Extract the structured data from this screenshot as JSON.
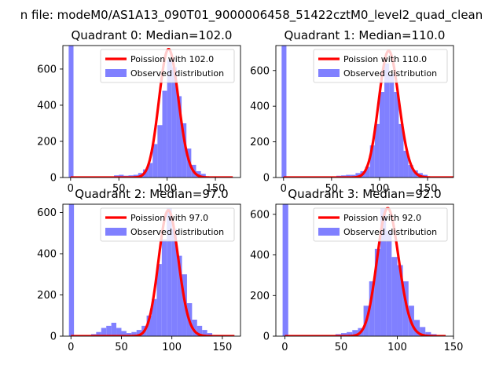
{
  "suptitle": "n file: modeM0/AS1A13_090T01_9000006458_51422cztM0_level2_quad_clean",
  "chart_data": [
    {
      "type": "histogram",
      "title": "Quadrant 0: Median=102.0",
      "median": 102.0,
      "legend": [
        "Poission with 102.0",
        "Observed distribution"
      ],
      "legend_position": "upper-right",
      "xlim": [
        -8,
        176
      ],
      "ylim": [
        0,
        730
      ],
      "xticks": [
        0,
        50,
        100,
        150
      ],
      "yticks": [
        0,
        200,
        400,
        600
      ],
      "hist_bins": [
        [
          -2,
          3,
          730
        ],
        [
          45,
          50,
          12
        ],
        [
          50,
          55,
          15
        ],
        [
          55,
          60,
          10
        ],
        [
          60,
          65,
          12
        ],
        [
          65,
          70,
          15
        ],
        [
          70,
          75,
          25
        ],
        [
          75,
          80,
          45
        ],
        [
          80,
          85,
          80
        ],
        [
          85,
          90,
          185
        ],
        [
          90,
          95,
          290
        ],
        [
          95,
          100,
          480
        ],
        [
          100,
          105,
          650
        ],
        [
          105,
          110,
          610
        ],
        [
          110,
          115,
          450
        ],
        [
          115,
          120,
          300
        ],
        [
          120,
          125,
          160
        ],
        [
          125,
          130,
          70
        ],
        [
          130,
          135,
          35
        ],
        [
          135,
          140,
          20
        ]
      ],
      "poisson_lambda": 102.0,
      "poisson_scale": 710,
      "curve_xrange": [
        0,
        168
      ],
      "poisson_color": "#ff0000",
      "hist_color": "#8080ff"
    },
    {
      "type": "histogram",
      "title": "Quadrant 1: Median=110.0",
      "median": 110.0,
      "legend": [
        "Poission with 110.0",
        "Observed distribution"
      ],
      "legend_position": "upper-right",
      "xlim": [
        -8,
        177
      ],
      "ylim": [
        0,
        740
      ],
      "xticks": [
        0,
        50,
        100,
        150
      ],
      "yticks": [
        0,
        200,
        400,
        600
      ],
      "hist_bins": [
        [
          -2,
          3,
          740
        ],
        [
          55,
          60,
          10
        ],
        [
          60,
          65,
          12
        ],
        [
          65,
          70,
          15
        ],
        [
          70,
          75,
          15
        ],
        [
          75,
          80,
          25
        ],
        [
          80,
          85,
          35
        ],
        [
          85,
          90,
          60
        ],
        [
          90,
          95,
          180
        ],
        [
          95,
          100,
          300
        ],
        [
          100,
          105,
          480
        ],
        [
          105,
          110,
          640
        ],
        [
          110,
          115,
          580
        ],
        [
          115,
          120,
          480
        ],
        [
          120,
          125,
          300
        ],
        [
          125,
          130,
          150
        ],
        [
          130,
          135,
          70
        ],
        [
          135,
          140,
          40
        ],
        [
          140,
          145,
          25
        ],
        [
          145,
          150,
          15
        ]
      ],
      "poisson_lambda": 110.0,
      "poisson_scale": 710,
      "curve_xrange": [
        0,
        178
      ],
      "poisson_color": "#ff0000",
      "hist_color": "#8080ff"
    },
    {
      "type": "histogram",
      "title": "Quadrant 2: Median=97.0",
      "median": 97.0,
      "legend": [
        "Poission with 97.0",
        "Observed distribution"
      ],
      "legend_position": "upper-right",
      "xlim": [
        -8,
        168
      ],
      "ylim": [
        0,
        640
      ],
      "xticks": [
        0,
        50,
        100,
        150
      ],
      "yticks": [
        0,
        200,
        400,
        600
      ],
      "hist_bins": [
        [
          -2,
          3,
          640
        ],
        [
          20,
          25,
          10
        ],
        [
          25,
          30,
          20
        ],
        [
          30,
          35,
          40
        ],
        [
          35,
          40,
          50
        ],
        [
          40,
          45,
          65
        ],
        [
          45,
          50,
          40
        ],
        [
          50,
          55,
          25
        ],
        [
          55,
          60,
          15
        ],
        [
          60,
          65,
          20
        ],
        [
          65,
          70,
          30
        ],
        [
          70,
          75,
          50
        ],
        [
          75,
          80,
          100
        ],
        [
          80,
          85,
          180
        ],
        [
          85,
          90,
          350
        ],
        [
          90,
          95,
          470
        ],
        [
          95,
          100,
          620
        ],
        [
          100,
          105,
          520
        ],
        [
          105,
          110,
          390
        ],
        [
          110,
          115,
          300
        ],
        [
          115,
          120,
          160
        ],
        [
          120,
          125,
          80
        ],
        [
          125,
          130,
          50
        ],
        [
          130,
          135,
          30
        ],
        [
          135,
          140,
          15
        ]
      ],
      "poisson_lambda": 97.0,
      "poisson_scale": 610,
      "curve_xrange": [
        0,
        162
      ],
      "poisson_color": "#ff0000",
      "hist_color": "#8080ff"
    },
    {
      "type": "histogram",
      "title": "Quadrant 3: Median=92.0",
      "median": 92.0,
      "legend": [
        "Poission with 92.0",
        "Observed distribution"
      ],
      "legend_position": "upper-right",
      "xlim": [
        -8,
        150
      ],
      "ylim": [
        0,
        650
      ],
      "xticks": [
        0,
        50,
        100,
        150
      ],
      "yticks": [
        0,
        200,
        400,
        600
      ],
      "hist_bins": [
        [
          -2,
          3,
          650
        ],
        [
          45,
          50,
          10
        ],
        [
          50,
          55,
          15
        ],
        [
          55,
          60,
          20
        ],
        [
          60,
          65,
          30
        ],
        [
          65,
          70,
          40
        ],
        [
          70,
          75,
          150
        ],
        [
          75,
          80,
          270
        ],
        [
          80,
          85,
          430
        ],
        [
          85,
          90,
          630
        ],
        [
          90,
          95,
          520
        ],
        [
          95,
          100,
          390
        ],
        [
          100,
          105,
          350
        ],
        [
          105,
          110,
          270
        ],
        [
          110,
          115,
          150
        ],
        [
          115,
          120,
          80
        ],
        [
          120,
          125,
          45
        ],
        [
          125,
          130,
          20
        ],
        [
          130,
          135,
          10
        ]
      ],
      "poisson_lambda": 92.0,
      "poisson_scale": 630,
      "curve_xrange": [
        0,
        143
      ],
      "poisson_color": "#ff0000",
      "hist_color": "#8080ff"
    }
  ]
}
